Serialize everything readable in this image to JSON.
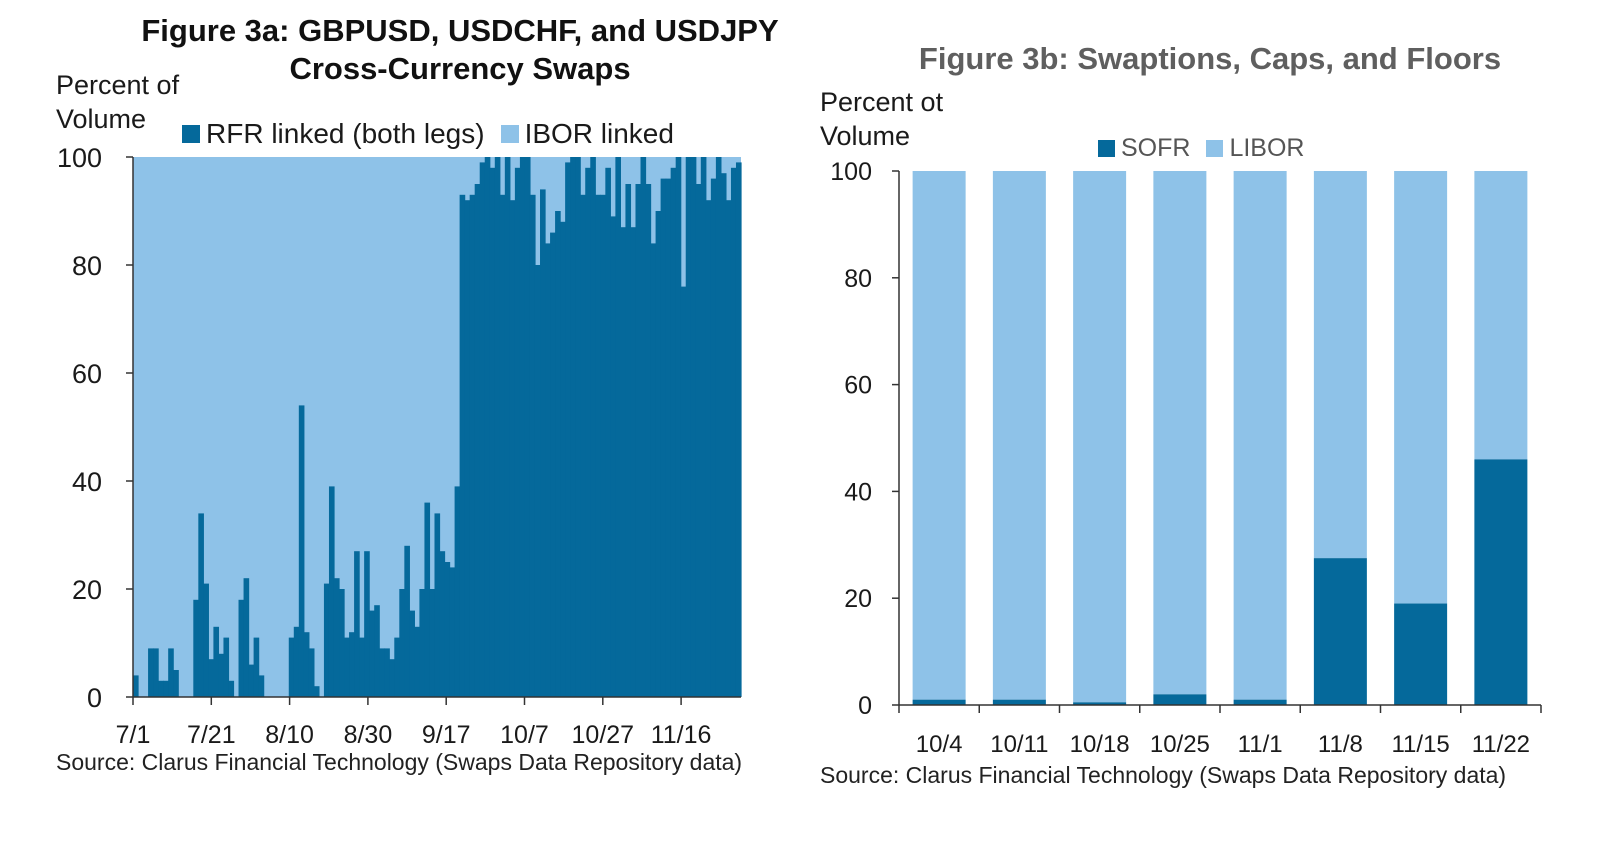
{
  "colors": {
    "dark": "#05699b",
    "light": "#8ec2e8"
  },
  "chart_data": [
    {
      "type": "area",
      "title": "Figure 3a: GBPUSD, USDCHF, and USDJPY Cross-Currency Swaps",
      "ylabel": "Percent of Volume",
      "xlabel": "",
      "ylim": [
        0,
        100
      ],
      "y_ticks": [
        "0",
        "20",
        "40",
        "60",
        "80",
        "100"
      ],
      "x_ticks": [
        "7/1",
        "7/21",
        "8/10",
        "8/30",
        "9/17",
        "10/7",
        "10/27",
        "11/16"
      ],
      "grid": false,
      "legend": "top",
      "source": "Source: Clarus Financial Technology (Swaps Data Repository data)",
      "series": [
        {
          "name": "RFR linked (both legs)",
          "color": "#05699b",
          "values": [
            4,
            0,
            0,
            9,
            9,
            3,
            3,
            9,
            5,
            0,
            0,
            0,
            18,
            34,
            21,
            7,
            13,
            8,
            11,
            3,
            0,
            18,
            22,
            6,
            11,
            4,
            0,
            0,
            0,
            0,
            0,
            11,
            13,
            54,
            12,
            9,
            2,
            0,
            21,
            39,
            22,
            20,
            11,
            12,
            27,
            11,
            27,
            16,
            17,
            9,
            9,
            7,
            11,
            20,
            28,
            16,
            13,
            20,
            36,
            20,
            34,
            27,
            25,
            24,
            39,
            93,
            92,
            93,
            95,
            99,
            100,
            98,
            100,
            93,
            100,
            92,
            98,
            100,
            100,
            93,
            80,
            94,
            84,
            86,
            90,
            88,
            99,
            100,
            100,
            93,
            98,
            100,
            93,
            93,
            98,
            89,
            100,
            87,
            95,
            87,
            95,
            100,
            95,
            84,
            90,
            96,
            96,
            98,
            100,
            76,
            100,
            100,
            95,
            100,
            92,
            96,
            100,
            97,
            92,
            98,
            99
          ],
          "color_fill": "dark"
        },
        {
          "name": "IBOR linked",
          "color": "#8ec2e8",
          "values_note": ""
        }
      ]
    },
    {
      "type": "bar",
      "title": "Figure 3b:  Swaptions, Caps, and Floors",
      "ylabel": "Percent ot Volume",
      "xlabel": "",
      "ylim": [
        0,
        100
      ],
      "y_ticks": [
        "0",
        "20",
        "40",
        "60",
        "80",
        "100"
      ],
      "categories": [
        "10/4",
        "10/11",
        "10/18",
        "10/25",
        "11/1",
        "11/8",
        "11/15",
        "11/22"
      ],
      "grid": false,
      "legend": "top",
      "source": "Source: Clarus Financial Technology (Swaps Data Repository data)",
      "series": [
        {
          "name": "SOFR",
          "color": "#05699b",
          "values": [
            1,
            1,
            0.5,
            2,
            1,
            27.5,
            19,
            46
          ]
        },
        {
          "name": "LIBOR",
          "color": "#8ec2e8",
          "values": [
            99,
            99,
            99.5,
            98,
            99,
            72.5,
            81,
            54
          ]
        }
      ]
    }
  ]
}
